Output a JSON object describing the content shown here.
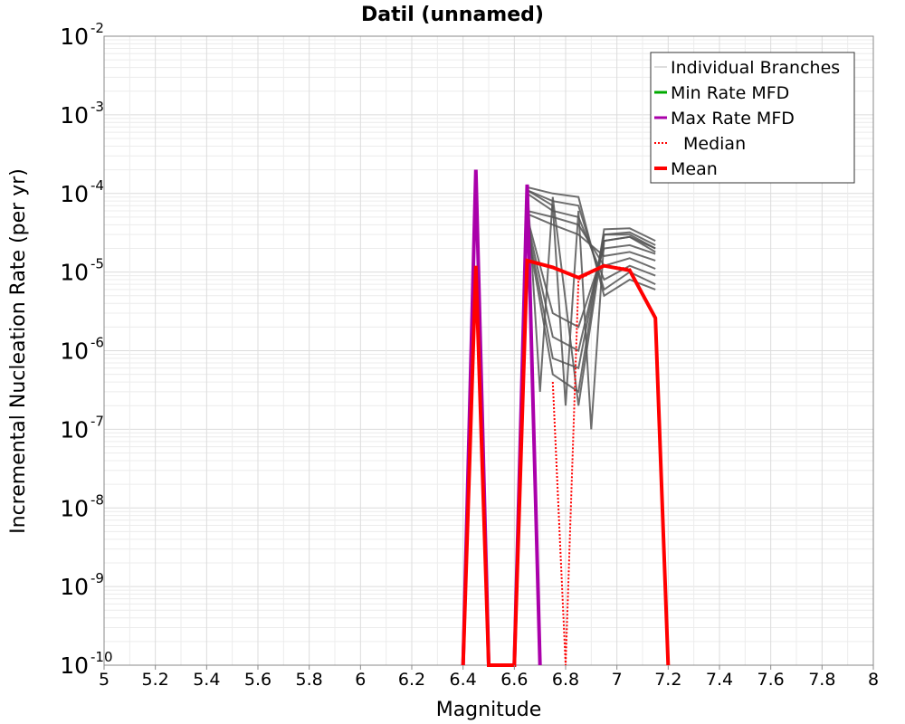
{
  "chart_data": {
    "type": "line",
    "title": "Datil (unnamed)",
    "xlabel": "Magnitude",
    "ylabel": "Incremental Nucleation Rate (per yr)",
    "xlim": [
      5,
      8
    ],
    "ylim": [
      1e-10,
      0.01
    ],
    "y_scale": "log",
    "grid": true,
    "legend_position": "top-right",
    "x_ticks": [
      "5",
      "5.2",
      "5.4",
      "5.6",
      "5.8",
      "6",
      "6.2",
      "6.4",
      "6.6",
      "6.8",
      "7",
      "7.2",
      "7.4",
      "7.6",
      "7.8",
      "8"
    ],
    "y_ticks": [
      {
        "base": "10",
        "exp": "-10",
        "value": 1e-10
      },
      {
        "base": "10",
        "exp": "-9",
        "value": 1e-09
      },
      {
        "base": "10",
        "exp": "-8",
        "value": 1e-08
      },
      {
        "base": "10",
        "exp": "-7",
        "value": 1e-07
      },
      {
        "base": "10",
        "exp": "-6",
        "value": 1e-06
      },
      {
        "base": "10",
        "exp": "-5",
        "value": 1e-05
      },
      {
        "base": "10",
        "exp": "-4",
        "value": 0.0001
      },
      {
        "base": "10",
        "exp": "-3",
        "value": 0.001
      },
      {
        "base": "10",
        "exp": "-2",
        "value": 0.01
      }
    ],
    "legend": [
      {
        "label": "Individual Branches",
        "color": "#bbbbbb",
        "style": "thin"
      },
      {
        "label": "Min Rate MFD",
        "color": "#00aa00",
        "style": "solid"
      },
      {
        "label": "Max Rate MFD",
        "color": "#aa00aa",
        "style": "solid"
      },
      {
        "label": "Median",
        "color": "#ff0000",
        "style": "dotted"
      },
      {
        "label": "Mean",
        "color": "#ff0000",
        "style": "thick"
      }
    ],
    "series": [
      {
        "name": "Individual Branches",
        "color": "#555555",
        "lines": [
          {
            "x": [
              6.65,
              6.75,
              6.85,
              6.95,
              7.05,
              7.15
            ],
            "y": [
              0.00012,
              0.0001,
              9e-05,
              5e-06,
              8e-06,
              6e-06
            ]
          },
          {
            "x": [
              6.65,
              6.75,
              6.85,
              6.95,
              7.05,
              7.15
            ],
            "y": [
              0.00011,
              8e-05,
              7e-05,
              6e-06,
              1e-05,
              7e-06
            ]
          },
          {
            "x": [
              6.65,
              6.75,
              6.85,
              6.95,
              7.05,
              7.15
            ],
            "y": [
              0.0001,
              6e-05,
              5e-05,
              8e-06,
              1.2e-05,
              9e-06
            ]
          },
          {
            "x": [
              6.65,
              6.75,
              6.85,
              6.95,
              7.05,
              7.15
            ],
            "y": [
              6e-05,
              5e-05,
              4e-05,
              1.2e-05,
              1.5e-05,
              1.1e-05
            ]
          },
          {
            "x": [
              6.65,
              6.75,
              6.85,
              6.95,
              7.05,
              7.15
            ],
            "y": [
              5.5e-05,
              4e-05,
              3e-05,
              1.6e-05,
              1.8e-05,
              1.4e-05
            ]
          },
          {
            "x": [
              6.65,
              6.75,
              6.85,
              6.95,
              7.05,
              7.15
            ],
            "y": [
              5e-05,
              3e-06,
              2e-06,
              2e-05,
              2.2e-05,
              1.7e-05
            ]
          },
          {
            "x": [
              6.65,
              6.75,
              6.85,
              6.95,
              7.05,
              7.15
            ],
            "y": [
              4.5e-05,
              1.5e-06,
              1e-06,
              2.5e-05,
              2.8e-05,
              2e-05
            ]
          },
          {
            "x": [
              6.65,
              6.75,
              6.85,
              6.95,
              7.05,
              7.15
            ],
            "y": [
              4e-05,
              8e-07,
              6e-07,
              3e-05,
              3.2e-05,
              2.2e-05
            ]
          },
          {
            "x": [
              6.65,
              6.75,
              6.85,
              6.95,
              7.05,
              7.15
            ],
            "y": [
              3.5e-05,
              5e-07,
              3e-07,
              3.5e-05,
              3.6e-05,
              2.5e-05
            ]
          },
          {
            "x": [
              6.65,
              6.7,
              6.75,
              6.85,
              6.95,
              7.05,
              7.15
            ],
            "y": [
              0.00013,
              3e-07,
              9e-05,
              2e-07,
              3e-05,
              3e-05,
              2e-05
            ]
          },
          {
            "x": [
              6.65,
              6.75,
              6.8,
              6.85,
              6.9,
              6.95,
              7.05,
              7.15
            ],
            "y": [
              0.00011,
              7e-05,
              2e-07,
              6e-05,
              1e-07,
              2.5e-05,
              2.8e-05,
              1.8e-05
            ]
          }
        ]
      },
      {
        "name": "Max Rate MFD",
        "color": "#aa00aa",
        "x": [
          6.4,
          6.45,
          6.5,
          6.6,
          6.65,
          6.7
        ],
        "y": [
          1e-10,
          0.0002,
          1e-10,
          1e-10,
          0.00013,
          1e-10
        ]
      },
      {
        "name": "Median",
        "color": "#ff0000",
        "x": [
          6.75,
          6.8,
          6.85,
          6.95,
          7.05,
          7.15,
          7.2
        ],
        "y": [
          4e-07,
          1e-10,
          8e-06,
          1.2e-05,
          1.1e-05,
          2.6e-06,
          1e-10
        ]
      },
      {
        "name": "Mean",
        "color": "#ff0000",
        "x": [
          6.4,
          6.45,
          6.5,
          6.6,
          6.65,
          6.75,
          6.85,
          6.95,
          7.05,
          7.15,
          7.2
        ],
        "y": [
          1e-10,
          1.2e-05,
          1e-10,
          1e-10,
          1.4e-05,
          1.15e-05,
          8.5e-06,
          1.2e-05,
          1.05e-05,
          2.6e-06,
          1e-10
        ]
      }
    ]
  }
}
